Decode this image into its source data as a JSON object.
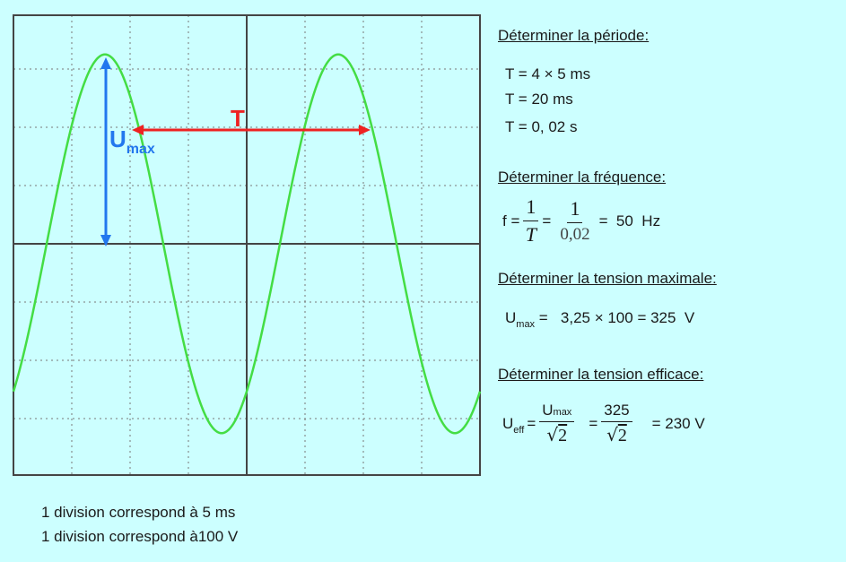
{
  "oscilloscope": {
    "colors": {
      "screen": "#ccffff",
      "grid": "#777777",
      "axis": "#444444",
      "wave": "#44dd44",
      "period_arrow": "#ee2222",
      "amplitude_arrow": "#2277ee"
    },
    "period_label": "T",
    "umax_label": {
      "main": "U",
      "sub": "max"
    }
  },
  "notes": {
    "time_division": "1 division correspond à 5 ms",
    "voltage_division": "1 division correspond à100 V"
  },
  "periode": {
    "heading": "Déterminer la période:",
    "lines": [
      "T = 4 × 5 ms",
      "T = 20 ms",
      "T = 0, 02 s"
    ]
  },
  "frequence": {
    "heading": "Déterminer la fréquence:",
    "lhs": "f =",
    "frac1": {
      "num": "1",
      "den": "T"
    },
    "eq1": "=",
    "frac2": {
      "num": "1",
      "den": "0,02"
    },
    "result": "=  50  Hz"
  },
  "tension_max": {
    "heading": "Déterminer la tension maximale:",
    "lhs_main": "U",
    "lhs_sub": "max",
    "rhs": "=   3,25 × 100 = 325  V"
  },
  "tension_eff": {
    "heading": "Déterminer la tension efficace:",
    "lhs_main": "U",
    "lhs_sub": "eff",
    "eq": "=",
    "frac1": {
      "num_main": "U",
      "num_sub": "max",
      "den_sym": "√",
      "den_arg": "2"
    },
    "eq2": "=",
    "frac2": {
      "num": "325",
      "den_sym": "√",
      "den_arg": "2"
    },
    "result": "= 230 V"
  }
}
